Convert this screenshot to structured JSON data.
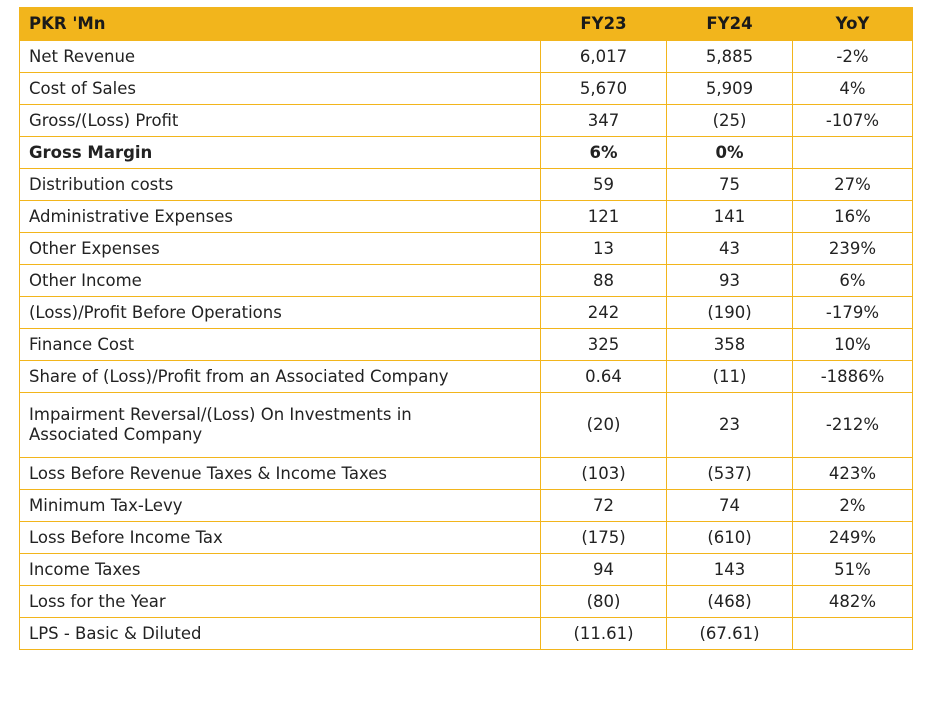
{
  "table": {
    "headers": [
      "PKR 'Mn",
      "FY23",
      "FY24",
      "YoY"
    ],
    "rows": [
      {
        "label": "Net Revenue",
        "fy23": "6,017",
        "fy24": "5,885",
        "yoy": "-2%"
      },
      {
        "label": "Cost of Sales",
        "fy23": "5,670",
        "fy24": "5,909",
        "yoy": "4%"
      },
      {
        "label": "Gross/(Loss) Profit",
        "fy23": "347",
        "fy24": "(25)",
        "yoy": "-107%"
      },
      {
        "label": "Gross Margin",
        "fy23": "6%",
        "fy24": "0%",
        "yoy": ""
      },
      {
        "label": "Distribution costs",
        "fy23": "59",
        "fy24": "75",
        "yoy": "27%"
      },
      {
        "label": "Administrative Expenses",
        "fy23": "121",
        "fy24": "141",
        "yoy": "16%"
      },
      {
        "label": "Other Expenses",
        "fy23": "13",
        "fy24": "43",
        "yoy": "239%"
      },
      {
        "label": "Other Income",
        "fy23": "88",
        "fy24": "93",
        "yoy": "6%"
      },
      {
        "label": "(Loss)/Profit Before Operations",
        "fy23": "242",
        "fy24": "(190)",
        "yoy": "-179%"
      },
      {
        "label": "Finance Cost",
        "fy23": "325",
        "fy24": "358",
        "yoy": "10%"
      },
      {
        "label": "Share of (Loss)/Profit from an Associated Company",
        "fy23": "0.64",
        "fy24": "(11)",
        "yoy": "-1886%"
      },
      {
        "label_line1": "Impairment Reversal/(Loss) On Investments in",
        "label_line2": "Associated Company",
        "fy23": "(20)",
        "fy24": "23",
        "yoy": "-212%"
      },
      {
        "label": "Loss Before Revenue Taxes & Income Taxes",
        "fy23": "(103)",
        "fy24": "(537)",
        "yoy": "423%"
      },
      {
        "label": "Minimum Tax-Levy",
        "fy23": "72",
        "fy24": "74",
        "yoy": "2%"
      },
      {
        "label": "Loss Before Income Tax",
        "fy23": "(175)",
        "fy24": "(610)",
        "yoy": "249%"
      },
      {
        "label": "Income Taxes",
        "fy23": "94",
        "fy24": "143",
        "yoy": "51%"
      },
      {
        "label": "Loss for the Year",
        "fy23": "(80)",
        "fy24": "(468)",
        "yoy": "482%"
      },
      {
        "label": "LPS - Basic & Diluted",
        "fy23": "(11.61)",
        "fy24": "(67.61)",
        "yoy": ""
      }
    ]
  },
  "colors": {
    "header_bg": "#f2b51c",
    "border": "#f2b51c"
  }
}
